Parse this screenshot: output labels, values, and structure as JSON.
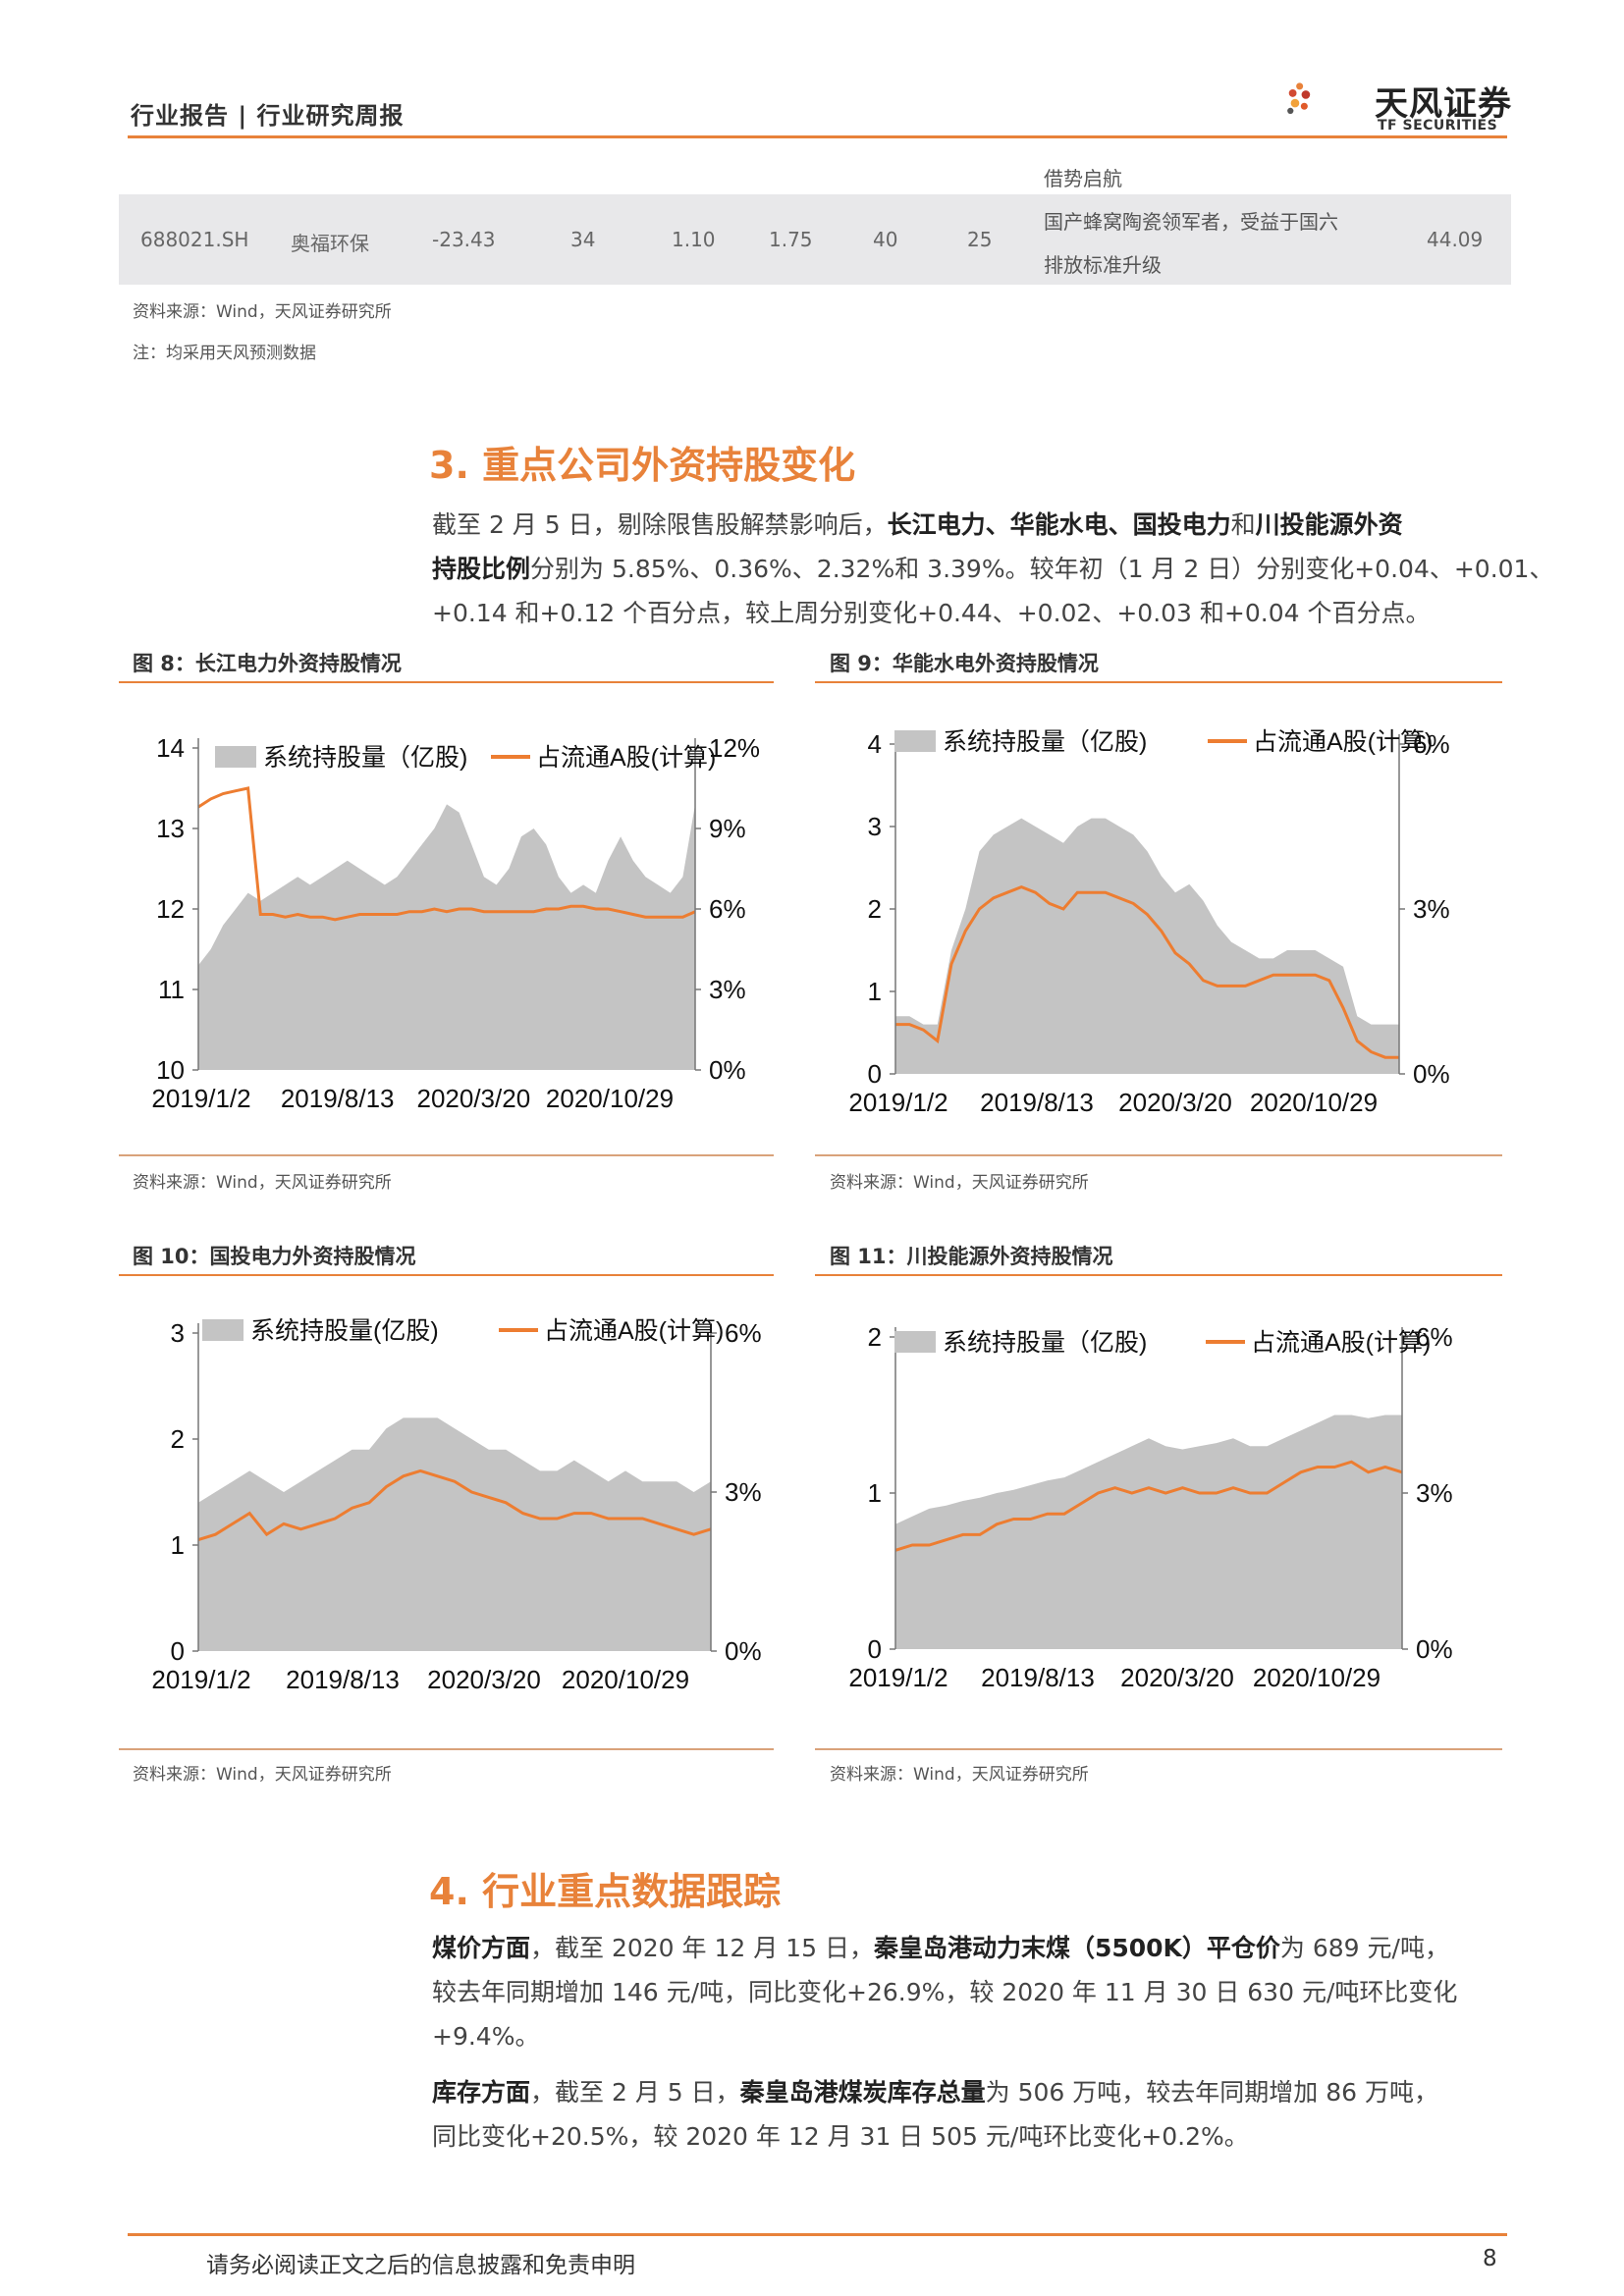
{
  "header": {
    "breadcrumb": "行业报告 | 行业研究周报",
    "logo_cn": "天风证券",
    "logo_en": "TF SECURITIES"
  },
  "table": {
    "prev_desc": "借势启航",
    "row": {
      "code": "688021.SH",
      "name": "奥福环保",
      "c1": "-23.43",
      "c2": "34",
      "c3": "1.10",
      "c4": "1.75",
      "c5": "40",
      "c6": "25",
      "desc1": "国产蜂窝陶瓷领军者，受益于国六",
      "desc2": "排放标准升级",
      "c7": "44.09"
    },
    "source": "资料来源：Wind，天风证券研究所",
    "note": "注：均采用天风预测数据"
  },
  "section3": {
    "title": "3. 重点公司外资持股变化",
    "line1_a": "截至 2 月 5 日，剔除限售股解禁影响后，",
    "line1_b": "长江电力、华能水电、国投电力",
    "line1_c": "和",
    "line1_d": "川投能源外资",
    "line2_a": "持股比例",
    "line2_b": "分别为 5.85%、0.36%、2.32%和 3.39%。较年初（1 月 2 日）分别变化+0.04、+0.01、",
    "line3": "+0.14 和+0.12 个百分点，较上周分别变化+0.44、+0.02、+0.03 和+0.04 个百分点。"
  },
  "figures": [
    {
      "title": "图 8：长江电力外资持股情况",
      "source": "资料来源：Wind，天风证券研究所"
    },
    {
      "title": "图 9：华能水电外资持股情况",
      "source": "资料来源：Wind，天风证券研究所"
    },
    {
      "title": "图 10：国投电力外资持股情况",
      "source": "资料来源：Wind，天风证券研究所"
    },
    {
      "title": "图 11：川投能源外资持股情况",
      "source": "资料来源：Wind，天风证券研究所"
    }
  ],
  "section4": {
    "title": "4. 行业重点数据跟踪",
    "p1_a": "煤价方面",
    "p1_b": "，截至 2020 年 12 月 15 日，",
    "p1_c": "秦皇岛港动力末煤（5500K）平仓价",
    "p1_d": "为 689 元/吨，",
    "p1_l2": "较去年同期增加 146 元/吨，同比变化+26.9%，较 2020 年 11 月 30 日 630 元/吨环比变化",
    "p1_l3": "+9.4%。",
    "p2_a": "库存方面",
    "p2_b": "，截至 2 月 5 日，",
    "p2_c": "秦皇岛港煤炭库存总量",
    "p2_d": "为 506 万吨，较去年同期增加 86 万吨，",
    "p2_l2": "同比变化+20.5%，较 2020 年 12 月 31 日 505 元/吨环比变化+0.2%。"
  },
  "footer": {
    "disclaimer": "请务必阅读正文之后的信息披露和免责申明",
    "page": "8"
  },
  "colors": {
    "accent": "#e8823a",
    "area": "#c4c4c4",
    "line": "#ed7d31"
  },
  "chart_data": [
    {
      "type": "area",
      "title": "图 8：长江电力外资持股情况",
      "x_ticks": [
        "2019/1/2",
        "2019/8/13",
        "2020/3/20",
        "2020/10/29"
      ],
      "ylim_left": [
        10,
        14
      ],
      "yticks_left": [
        "14",
        "13",
        "12",
        "11",
        "10"
      ],
      "ylim_right": [
        0,
        12
      ],
      "yticks_right": [
        "12%",
        "9%",
        "6%",
        "3%",
        "0%"
      ],
      "series": [
        {
          "name": "系统持股量（亿股)",
          "axis": "left",
          "kind": "area",
          "values": [
            11.3,
            11.5,
            11.8,
            12.0,
            12.2,
            12.1,
            12.2,
            12.3,
            12.4,
            12.3,
            12.4,
            12.5,
            12.6,
            12.5,
            12.4,
            12.3,
            12.4,
            12.6,
            12.8,
            13.0,
            13.3,
            13.2,
            12.8,
            12.4,
            12.3,
            12.5,
            12.9,
            13.0,
            12.8,
            12.4,
            12.2,
            12.3,
            12.2,
            12.6,
            12.9,
            12.6,
            12.4,
            12.3,
            12.2,
            12.4,
            13.3
          ]
        },
        {
          "name": "占流通A股(计算)",
          "axis": "right",
          "kind": "line",
          "values": [
            9.8,
            10.1,
            10.3,
            10.4,
            10.5,
            5.8,
            5.8,
            5.7,
            5.8,
            5.7,
            5.7,
            5.6,
            5.7,
            5.8,
            5.8,
            5.8,
            5.8,
            5.9,
            5.9,
            6.0,
            5.9,
            6.0,
            6.0,
            5.9,
            5.9,
            5.9,
            5.9,
            5.9,
            6.0,
            6.0,
            6.1,
            6.1,
            6.0,
            6.0,
            5.9,
            5.8,
            5.7,
            5.7,
            5.7,
            5.7,
            5.9
          ]
        }
      ]
    },
    {
      "type": "area",
      "title": "图 9：华能水电外资持股情况",
      "x_ticks": [
        "2019/1/2",
        "2019/8/13",
        "2020/3/20",
        "2020/10/29"
      ],
      "ylim_left": [
        0,
        4
      ],
      "yticks_left": [
        "4",
        "3",
        "2",
        "1",
        "0"
      ],
      "ylim_right": [
        0,
        6
      ],
      "yticks_right": [
        "6%",
        "3%",
        "0%"
      ],
      "series": [
        {
          "name": "系统持股量（亿股)",
          "axis": "left",
          "kind": "area",
          "values": [
            0.7,
            0.7,
            0.6,
            0.6,
            1.5,
            2.0,
            2.7,
            2.9,
            3.0,
            3.1,
            3.0,
            2.9,
            2.8,
            3.0,
            3.1,
            3.1,
            3.0,
            2.9,
            2.7,
            2.4,
            2.2,
            2.3,
            2.1,
            1.8,
            1.6,
            1.5,
            1.4,
            1.4,
            1.5,
            1.5,
            1.5,
            1.4,
            1.3,
            0.7,
            0.6,
            0.6,
            0.6
          ]
        },
        {
          "name": "占流通A股(计算)",
          "axis": "right",
          "kind": "line",
          "values": [
            0.9,
            0.9,
            0.8,
            0.6,
            2.0,
            2.6,
            3.0,
            3.2,
            3.3,
            3.4,
            3.3,
            3.1,
            3.0,
            3.3,
            3.3,
            3.3,
            3.2,
            3.1,
            2.9,
            2.6,
            2.2,
            2.0,
            1.7,
            1.6,
            1.6,
            1.6,
            1.7,
            1.8,
            1.8,
            1.8,
            1.8,
            1.7,
            1.2,
            0.6,
            0.4,
            0.3,
            0.3
          ]
        }
      ]
    },
    {
      "type": "area",
      "title": "图 10：国投电力外资持股情况",
      "x_ticks": [
        "2019/1/2",
        "2019/8/13",
        "2020/3/20",
        "2020/10/29"
      ],
      "ylim_left": [
        0,
        3
      ],
      "yticks_left": [
        "3",
        "2",
        "1",
        "0"
      ],
      "ylim_right": [
        0,
        6
      ],
      "yticks_right": [
        "6%",
        "3%",
        "0%"
      ],
      "series": [
        {
          "name": "系统持股量(亿股)",
          "axis": "left",
          "kind": "area",
          "values": [
            1.4,
            1.5,
            1.6,
            1.7,
            1.6,
            1.5,
            1.6,
            1.7,
            1.8,
            1.9,
            1.9,
            2.1,
            2.2,
            2.2,
            2.2,
            2.1,
            2.0,
            1.9,
            1.9,
            1.8,
            1.7,
            1.7,
            1.8,
            1.7,
            1.6,
            1.7,
            1.6,
            1.6,
            1.6,
            1.5,
            1.6
          ]
        },
        {
          "name": "占流通A股(计算)",
          "axis": "right",
          "kind": "line",
          "values": [
            2.1,
            2.2,
            2.4,
            2.6,
            2.2,
            2.4,
            2.3,
            2.4,
            2.5,
            2.7,
            2.8,
            3.1,
            3.3,
            3.4,
            3.3,
            3.2,
            3.0,
            2.9,
            2.8,
            2.6,
            2.5,
            2.5,
            2.6,
            2.6,
            2.5,
            2.5,
            2.5,
            2.4,
            2.3,
            2.2,
            2.3
          ]
        }
      ]
    },
    {
      "type": "area",
      "title": "图 11：川投能源外资持股情况",
      "x_ticks": [
        "2019/1/2",
        "2019/8/13",
        "2020/3/20",
        "2020/10/29"
      ],
      "ylim_left": [
        0,
        2
      ],
      "yticks_left": [
        "2",
        "1",
        "0"
      ],
      "ylim_right": [
        0,
        6
      ],
      "yticks_right": [
        "6%",
        "3%",
        "0%"
      ],
      "series": [
        {
          "name": "系统持股量（亿股)",
          "axis": "left",
          "kind": "area",
          "values": [
            0.8,
            0.85,
            0.9,
            0.92,
            0.95,
            0.97,
            1.0,
            1.02,
            1.05,
            1.08,
            1.1,
            1.15,
            1.2,
            1.25,
            1.3,
            1.35,
            1.3,
            1.28,
            1.3,
            1.32,
            1.35,
            1.3,
            1.3,
            1.35,
            1.4,
            1.45,
            1.5,
            1.5,
            1.48,
            1.5,
            1.5
          ]
        },
        {
          "name": "占流通A股(计算)",
          "axis": "right",
          "kind": "line",
          "values": [
            1.9,
            2.0,
            2.0,
            2.1,
            2.2,
            2.2,
            2.4,
            2.5,
            2.5,
            2.6,
            2.6,
            2.8,
            3.0,
            3.1,
            3.0,
            3.1,
            3.0,
            3.1,
            3.0,
            3.0,
            3.1,
            3.0,
            3.0,
            3.2,
            3.4,
            3.5,
            3.5,
            3.6,
            3.4,
            3.5,
            3.4
          ]
        }
      ]
    }
  ]
}
